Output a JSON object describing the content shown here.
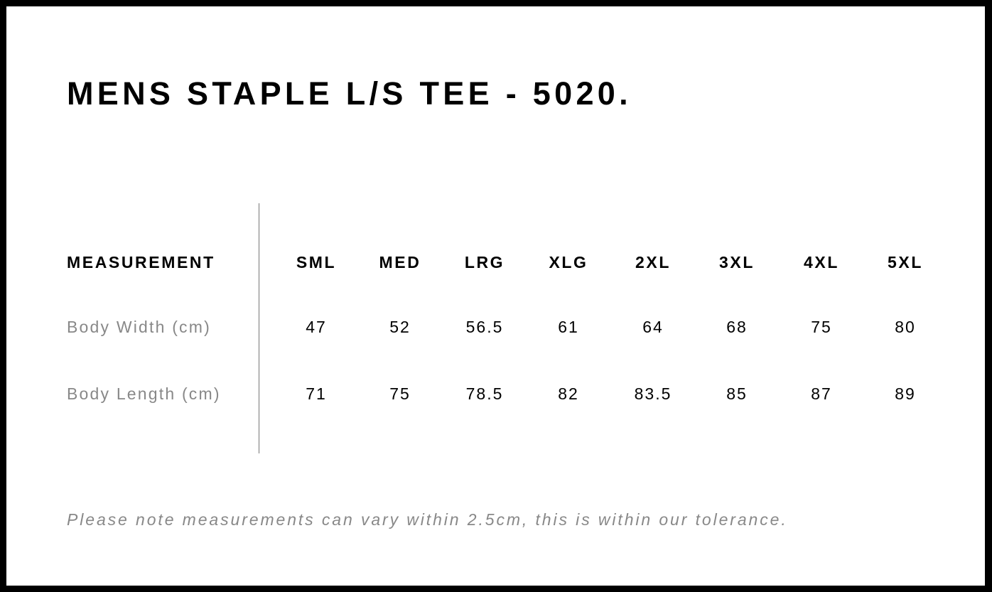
{
  "title": "MENS STAPLE L/S TEE - 5020.",
  "table": {
    "header_label": "MEASUREMENT",
    "sizes": [
      "SML",
      "MED",
      "LRG",
      "XLG",
      "2XL",
      "3XL",
      "4XL",
      "5XL"
    ],
    "rows": [
      {
        "label": "Body Width (cm)",
        "values": [
          "47",
          "52",
          "56.5",
          "61",
          "64",
          "68",
          "75",
          "80"
        ]
      },
      {
        "label": "Body Length (cm)",
        "values": [
          "71",
          "75",
          "78.5",
          "82",
          "83.5",
          "85",
          "87",
          "89"
        ]
      }
    ]
  },
  "note": "Please note measurements can vary within 2.5cm, this is within our tolerance.",
  "colors": {
    "frame": "#000000",
    "label_gray": "#888888",
    "text": "#000000"
  }
}
